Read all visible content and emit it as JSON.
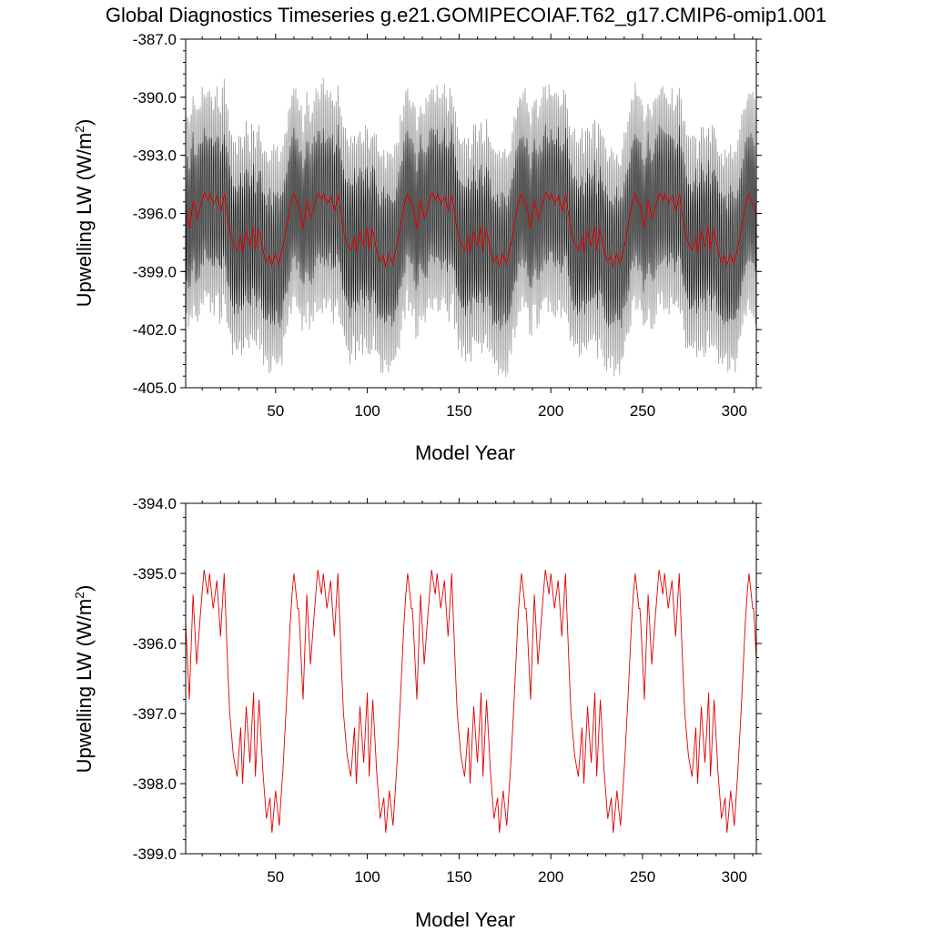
{
  "figure": {
    "title": "Global Diagnostics Timeseries g.e21.GOMIPECOIAF.T62_g17.CMIP6-omip1.001"
  },
  "colors": {
    "monthly_range": "#9a9a9a",
    "monthly": "#1a1a1a",
    "annual_mean": "#e00000",
    "axis": "#000000"
  },
  "chart_data": [
    {
      "type": "line",
      "panel": "top",
      "xlabel": "Model Year",
      "ylabel_prefix": "Upwelling LW (W/m",
      "ylabel_sup": "2",
      "ylabel_suffix": ")",
      "xlim": [
        1,
        312
      ],
      "ylim": [
        -405.0,
        -387.0
      ],
      "xticks": [
        50,
        100,
        150,
        200,
        250,
        300
      ],
      "xtick_labels": [
        "50",
        "100",
        "150",
        "200",
        "250",
        "300"
      ],
      "yticks": [
        -405.0,
        -402.0,
        -399.0,
        -396.0,
        -393.0,
        -390.0,
        -387.0
      ],
      "ytick_labels": [
        "-405.0",
        "-402.0",
        "-399.0",
        "-396.0",
        "-393.0",
        "-390.0",
        "-387.0"
      ],
      "cycle_years": 62,
      "cycle_start_years": [
        1,
        63,
        125,
        187,
        249
      ],
      "series": [
        {
          "name": "monthly mean (black) with monthly range envelope (grey)",
          "description": "Monthly global mean with strong seasonal cycle, amplitude ~3 W/m2 around the annual mean; envelope spans roughly -403 to -389",
          "seasonal_amplitude": 3.2,
          "envelope_amplitude": 5.4
        },
        {
          "name": "annual mean",
          "color": "annual_mean",
          "description": "Same annual-mean curve as lower panel"
        }
      ]
    },
    {
      "type": "line",
      "panel": "bottom",
      "xlabel": "Model Year",
      "ylabel_prefix": "Upwelling LW (W/m",
      "ylabel_sup": "2",
      "ylabel_suffix": ")",
      "xlim": [
        1,
        312
      ],
      "ylim": [
        -399.0,
        -394.0
      ],
      "xticks": [
        50,
        100,
        150,
        200,
        250,
        300
      ],
      "xtick_labels": [
        "50",
        "100",
        "150",
        "200",
        "250",
        "300"
      ],
      "yticks": [
        -399.0,
        -398.0,
        -397.0,
        -396.0,
        -395.0,
        -394.0
      ],
      "ytick_labels": [
        "-399.0",
        "-398.0",
        "-397.0",
        "-396.0",
        "-395.0",
        "-394.0"
      ],
      "series": [
        {
          "name": "annual mean",
          "color": "annual_mean",
          "cycle_years": 62,
          "cycle_start_years": [
            1,
            63,
            125,
            187,
            249
          ],
          "cycle_template": [
            [
              0,
              -395.7
            ],
            [
              2,
              -396.8
            ],
            [
              4,
              -395.3
            ],
            [
              6,
              -396.3
            ],
            [
              8,
              -395.6
            ],
            [
              10,
              -394.95
            ],
            [
              12,
              -395.3
            ],
            [
              13,
              -395.0
            ],
            [
              15,
              -395.5
            ],
            [
              17,
              -395.1
            ],
            [
              19,
              -395.9
            ],
            [
              21,
              -395.0
            ],
            [
              23,
              -396.4
            ],
            [
              24,
              -397.0
            ],
            [
              26,
              -397.6
            ],
            [
              28,
              -397.9
            ],
            [
              30,
              -397.2
            ],
            [
              31,
              -398.0
            ],
            [
              33,
              -396.9
            ],
            [
              35,
              -397.7
            ],
            [
              37,
              -396.7
            ],
            [
              38,
              -397.9
            ],
            [
              40,
              -396.8
            ],
            [
              42,
              -397.8
            ],
            [
              44,
              -398.5
            ],
            [
              46,
              -398.2
            ],
            [
              47,
              -398.7
            ],
            [
              49,
              -398.1
            ],
            [
              51,
              -398.6
            ],
            [
              53,
              -397.8
            ],
            [
              55,
              -396.8
            ],
            [
              57,
              -395.7
            ],
            [
              58,
              -395.3
            ],
            [
              59,
              -395.0
            ],
            [
              61,
              -395.5
            ]
          ]
        }
      ]
    }
  ]
}
